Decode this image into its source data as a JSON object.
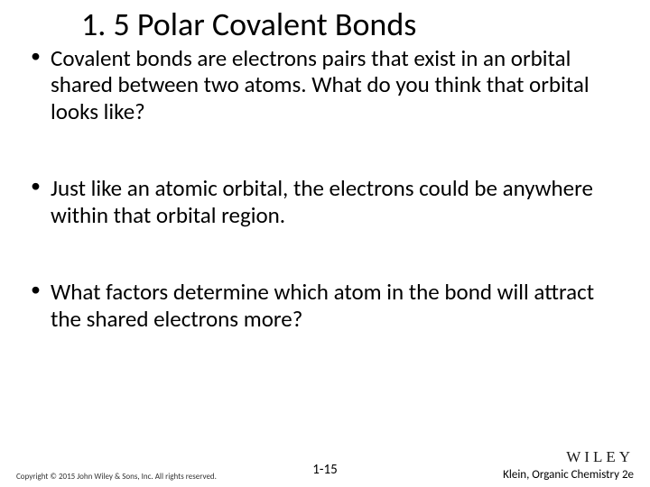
{
  "title": "1. 5 Polar Covalent Bonds",
  "bullets": [
    "Covalent bonds are electrons pairs that exist in an orbital shared between two atoms. What do you think that orbital looks like?",
    "Just like an atomic orbital, the electrons could be anywhere within that orbital region.",
    "What factors determine which atom in the bond will attract the shared electrons more?"
  ],
  "footer": {
    "copyright": "Copyright © 2015 John Wiley & Sons, Inc. All rights reserved.",
    "page": "1-15",
    "logo": "WILEY",
    "book": "Klein, Organic Chemistry 2e"
  },
  "colors": {
    "background": "#ffffff",
    "text": "#000000",
    "footer_text": "#333333"
  },
  "typography": {
    "title_fontsize": 36,
    "bullet_fontsize": 25,
    "copyright_fontsize": 9,
    "page_fontsize": 15,
    "book_fontsize": 13,
    "logo_fontsize": 17
  }
}
